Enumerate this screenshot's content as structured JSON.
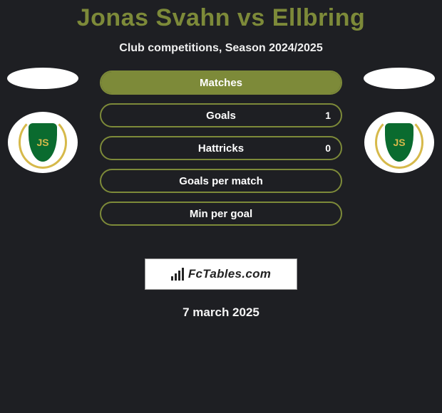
{
  "title_color": "#7d8a39",
  "title": "Jonas Svahn vs Ellbring",
  "subtitle": "Club competitions, Season 2024/2025",
  "club": {
    "bg": "#ffffff",
    "laurel_color": "#d6b94a",
    "shield_color": "#0a6b2f",
    "monogram_color": "#d6b94a",
    "monogram": "JS"
  },
  "stats": {
    "color": "#7d8a39",
    "rows": [
      {
        "label": "Matches",
        "left": "",
        "right": "",
        "fill_pct": 100
      },
      {
        "label": "Goals",
        "left": "",
        "right": "1",
        "fill_pct": 0
      },
      {
        "label": "Hattricks",
        "left": "",
        "right": "0",
        "fill_pct": 0
      },
      {
        "label": "Goals per match",
        "left": "",
        "right": "",
        "fill_pct": 0
      },
      {
        "label": "Min per goal",
        "left": "",
        "right": "",
        "fill_pct": 0
      }
    ]
  },
  "brand": "FcTables.com",
  "date": "7 march 2025"
}
